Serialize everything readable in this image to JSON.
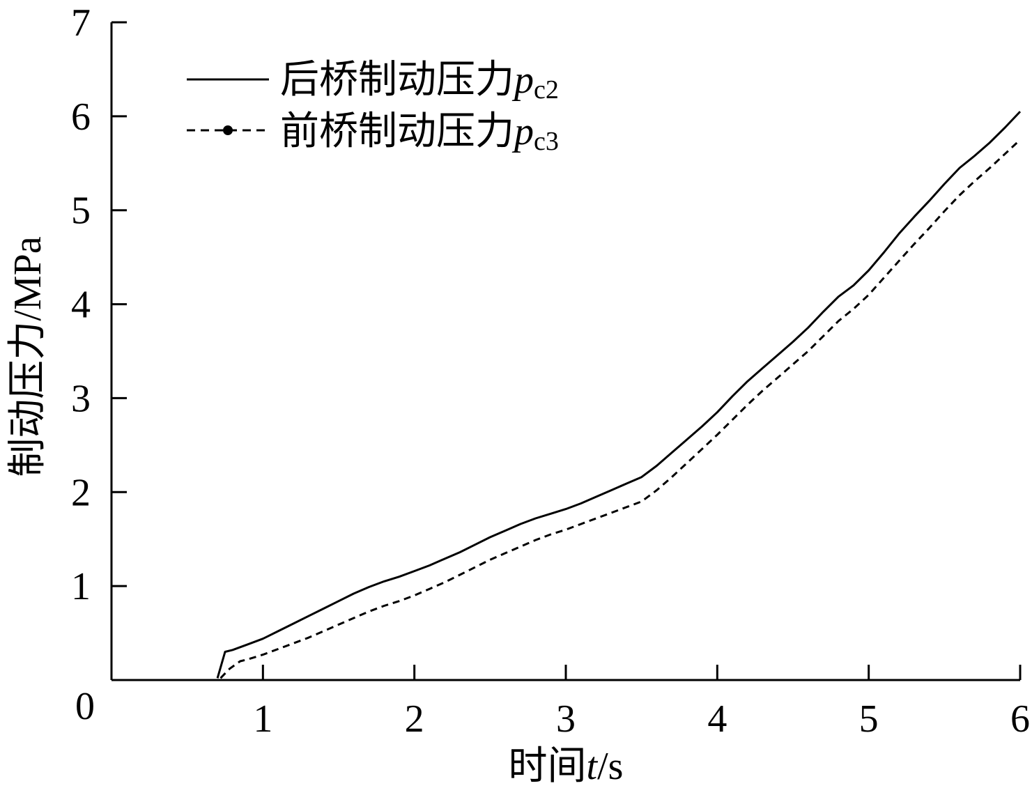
{
  "chart_data": {
    "type": "line",
    "xlabel": {
      "prefix": "时间",
      "var": "t",
      "unit": "/s"
    },
    "ylabel": "制动压力/MPa",
    "xlim": [
      0,
      6
    ],
    "ylim": [
      0,
      7
    ],
    "xticks": [
      "0",
      "1",
      "2",
      "3",
      "4",
      "5",
      "6"
    ],
    "yticks": [
      "1",
      "2",
      "3",
      "4",
      "5",
      "6",
      "7"
    ],
    "grid": false,
    "legend_position": "top-left",
    "series": [
      {
        "id": "pc2",
        "label_prefix": "后桥制动压力",
        "label_var": "p",
        "label_sub": "c2",
        "style": "solid",
        "x": [
          0.7,
          0.75,
          0.8,
          0.9,
          1.0,
          1.1,
          1.2,
          1.3,
          1.4,
          1.5,
          1.6,
          1.7,
          1.8,
          1.9,
          2.0,
          2.1,
          2.2,
          2.3,
          2.4,
          2.5,
          2.6,
          2.7,
          2.8,
          2.9,
          3.0,
          3.1,
          3.2,
          3.3,
          3.4,
          3.5,
          3.6,
          3.7,
          3.8,
          3.9,
          4.0,
          4.1,
          4.2,
          4.3,
          4.4,
          4.5,
          4.6,
          4.7,
          4.8,
          4.9,
          5.0,
          5.1,
          5.2,
          5.3,
          5.4,
          5.5,
          5.6,
          5.7,
          5.8,
          5.9,
          6.0
        ],
        "y": [
          0.02,
          0.3,
          0.32,
          0.38,
          0.44,
          0.52,
          0.6,
          0.68,
          0.76,
          0.84,
          0.92,
          0.99,
          1.05,
          1.1,
          1.16,
          1.22,
          1.29,
          1.36,
          1.44,
          1.52,
          1.59,
          1.66,
          1.72,
          1.77,
          1.82,
          1.88,
          1.95,
          2.02,
          2.09,
          2.16,
          2.28,
          2.42,
          2.56,
          2.7,
          2.85,
          3.02,
          3.18,
          3.32,
          3.46,
          3.6,
          3.75,
          3.92,
          4.08,
          4.2,
          4.36,
          4.55,
          4.75,
          4.93,
          5.1,
          5.28,
          5.45,
          5.58,
          5.72,
          5.88,
          6.05
        ]
      },
      {
        "id": "pc3",
        "label_prefix": "前桥制动压力",
        "label_var": "p",
        "label_sub": "c3",
        "style": "dashed",
        "x": [
          0.72,
          0.78,
          0.85,
          0.9,
          1.0,
          1.1,
          1.2,
          1.3,
          1.4,
          1.5,
          1.6,
          1.7,
          1.8,
          1.9,
          2.0,
          2.1,
          2.2,
          2.3,
          2.4,
          2.5,
          2.6,
          2.7,
          2.8,
          2.9,
          3.0,
          3.1,
          3.2,
          3.3,
          3.4,
          3.5,
          3.6,
          3.7,
          3.8,
          3.9,
          4.0,
          4.1,
          4.2,
          4.3,
          4.4,
          4.5,
          4.6,
          4.7,
          4.8,
          4.9,
          5.0,
          5.1,
          5.2,
          5.3,
          5.4,
          5.5,
          5.6,
          5.7,
          5.8,
          5.9,
          6.0
        ],
        "y": [
          0.02,
          0.12,
          0.2,
          0.22,
          0.27,
          0.33,
          0.39,
          0.45,
          0.52,
          0.59,
          0.66,
          0.73,
          0.79,
          0.84,
          0.9,
          0.97,
          1.04,
          1.12,
          1.2,
          1.28,
          1.35,
          1.42,
          1.49,
          1.55,
          1.6,
          1.66,
          1.72,
          1.78,
          1.84,
          1.9,
          2.02,
          2.16,
          2.31,
          2.46,
          2.61,
          2.77,
          2.93,
          3.08,
          3.22,
          3.36,
          3.5,
          3.66,
          3.82,
          3.95,
          4.1,
          4.28,
          4.46,
          4.64,
          4.81,
          4.99,
          5.16,
          5.31,
          5.45,
          5.6,
          5.75
        ]
      }
    ]
  }
}
